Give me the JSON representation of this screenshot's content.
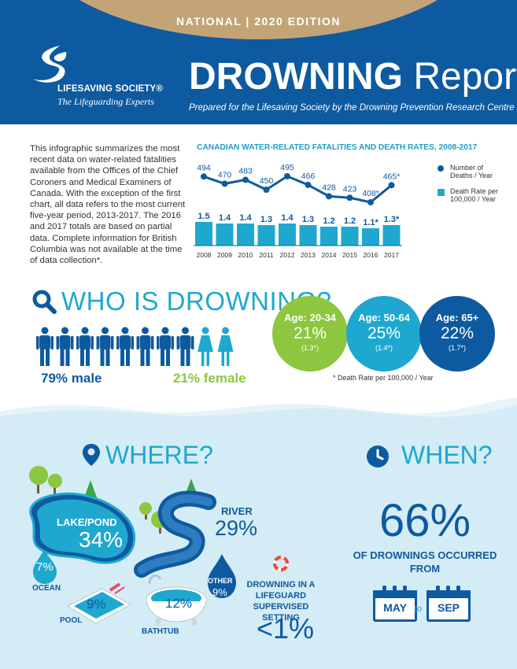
{
  "header": {
    "edition": "NATIONAL  |  2020 EDITION",
    "org_name": "LIFESAVING SOCIETY®",
    "org_tagline": "The Lifeguarding Experts",
    "title_bold": "DROWNING",
    "title_light": "Report",
    "subtitle": "Prepared for the Lifesaving Society by the Drowning Prevention Research Centre Canada"
  },
  "intro": "This infographic summarizes the most recent data on water-related fatalities available from the Offices of the Chief Coroners and Medical Examiners of Canada. With the exception of the first chart, all data refers to the most current five-year period, 2013-2017. The 2016 and 2017 totals are based on partial data. Complete information for British Columbia was not available at the time of data collection*.",
  "chart_data": {
    "type": "bar",
    "title": "CANADIAN WATER-RELATED FATALITIES AND DEATH RATES, 2008-2017",
    "categories": [
      "2008",
      "2009",
      "2010",
      "2011",
      "2012",
      "2013",
      "2014",
      "2015",
      "2016",
      "2017"
    ],
    "series": [
      {
        "name": "Number of Deaths / Year",
        "type": "line",
        "values": [
          494,
          470,
          483,
          450,
          495,
          466,
          428,
          423,
          408,
          465
        ],
        "labels": [
          "494",
          "470",
          "483",
          "450",
          "495",
          "466",
          "428",
          "423",
          "408*",
          "465*"
        ]
      },
      {
        "name": "Death Rate per 100,000 / Year",
        "type": "bar",
        "values": [
          1.5,
          1.4,
          1.4,
          1.3,
          1.4,
          1.3,
          1.2,
          1.2,
          1.1,
          1.3
        ],
        "labels": [
          "1.5",
          "1.4",
          "1.4",
          "1.3",
          "1.4",
          "1.3",
          "1.2",
          "1.2",
          "1.1*",
          "1.3*"
        ]
      }
    ],
    "legend_position": "right",
    "colors": {
      "line": "#0e5aa0",
      "bar": "#1fa8cf"
    }
  },
  "legend": {
    "deaths_line1": "Number of",
    "deaths_line2": "Deaths / Year",
    "rate_line1": "Death Rate per",
    "rate_line2": "100,000 / Year"
  },
  "who": {
    "title": "WHO IS DROWNING?",
    "male_pct": "79% male",
    "female_pct": "21% female",
    "male_icons": 8,
    "female_icons": 2,
    "ages": [
      {
        "label": "Age: 20-34",
        "pct": "21%",
        "rate": "(1.3*)",
        "color": "#8dc63f"
      },
      {
        "label": "Age: 50-64",
        "pct": "25%",
        "rate": "(1.4*)",
        "color": "#1fa8cf"
      },
      {
        "label": "Age: 65+",
        "pct": "22%",
        "rate": "(1.7*)",
        "color": "#0e5aa0"
      }
    ],
    "rate_note": "* Death Rate per 100,000 / Year"
  },
  "where": {
    "title": "WHERE?",
    "lake_label": "LAKE/POND",
    "lake_pct": "34%",
    "river_label": "RIVER",
    "river_pct": "29%",
    "ocean_pct": "7%",
    "ocean_label": "OCEAN",
    "other_label": "OTHER",
    "other_pct": "9%",
    "pool_pct": "9%",
    "pool_label": "POOL",
    "bath_pct": "12%",
    "bath_label": "BATHTUB",
    "guard_label": "DROWNING IN A LIFEGUARD SUPERVISED SETTING",
    "guard_pct": "<1%"
  },
  "when": {
    "title": "WHEN?",
    "pct": "66%",
    "text": "OF DROWNINGS OCCURRED FROM",
    "from": "MAY",
    "to": "to",
    "until": "SEP"
  },
  "colors": {
    "navy": "#0e5aa0",
    "teal": "#1fa8cf",
    "green": "#8dc63f",
    "gold": "#c3a476",
    "water": "#d4ecf5"
  }
}
